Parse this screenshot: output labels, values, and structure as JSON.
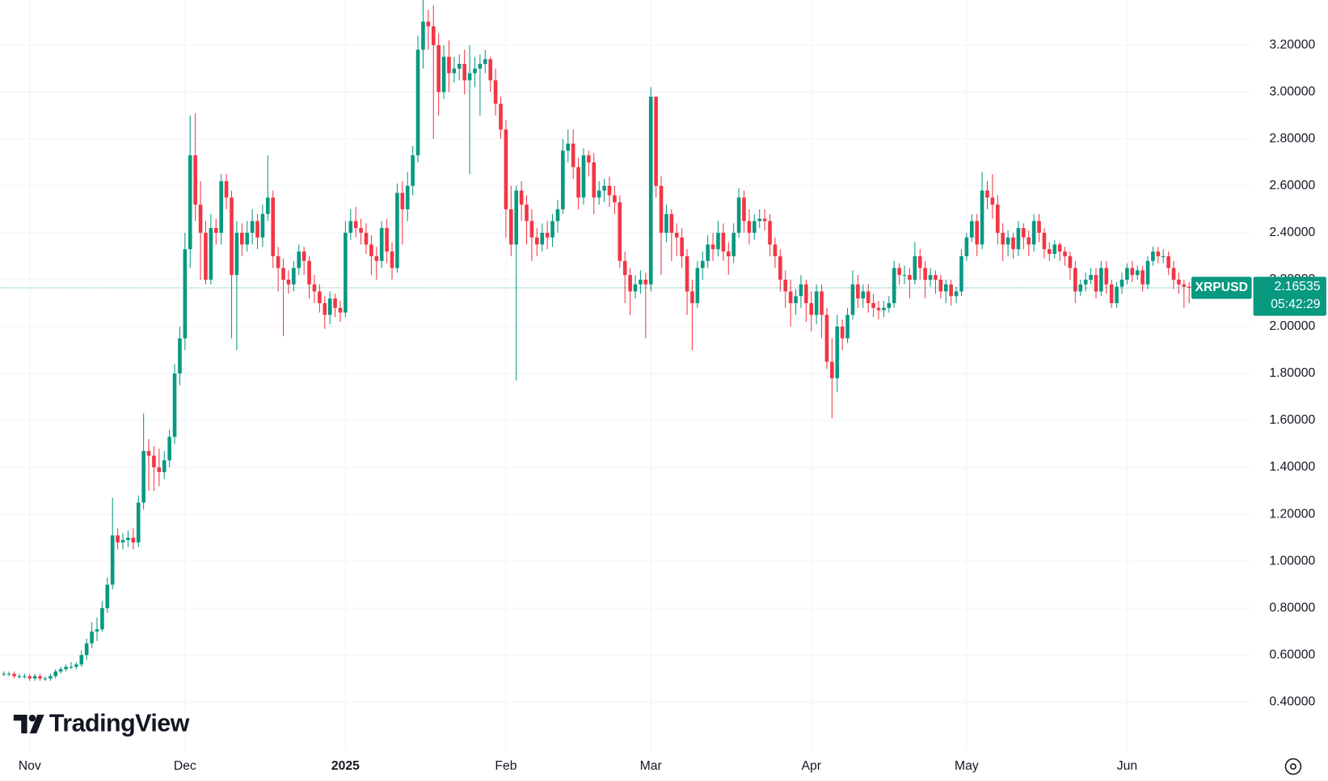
{
  "chart_data": {
    "type": "candlestick",
    "symbol": "XRPUSD",
    "last_price": 2.16535,
    "countdown": "05:42:29",
    "watermark": "TradingView",
    "up_color": "#089981",
    "down_color": "#f23645",
    "grid": true,
    "ylim": [
      0.19,
      3.392
    ],
    "yticks": [
      {
        "value": 0.4,
        "label": "0.40000"
      },
      {
        "value": 0.6,
        "label": "0.60000"
      },
      {
        "value": 0.8,
        "label": "0.80000"
      },
      {
        "value": 1.0,
        "label": "1.00000"
      },
      {
        "value": 1.2,
        "label": "1.20000"
      },
      {
        "value": 1.4,
        "label": "1.40000"
      },
      {
        "value": 1.6,
        "label": "1.60000"
      },
      {
        "value": 1.8,
        "label": "1.80000"
      },
      {
        "value": 2.0,
        "label": "2.00000"
      },
      {
        "value": 2.2,
        "label": "2.20000"
      },
      {
        "value": 2.4,
        "label": "2.40000"
      },
      {
        "value": 2.6,
        "label": "2.60000"
      },
      {
        "value": 2.8,
        "label": "2.80000"
      },
      {
        "value": 3.0,
        "label": "3.00000"
      },
      {
        "value": 3.2,
        "label": "3.20000"
      }
    ],
    "categories": [
      null,
      null,
      null,
      null,
      null,
      "Nov",
      null,
      null,
      null,
      null,
      null,
      null,
      null,
      null,
      null,
      null,
      null,
      null,
      null,
      null,
      null,
      null,
      null,
      null,
      null,
      null,
      null,
      null,
      null,
      null,
      null,
      null,
      null,
      null,
      null,
      "Dec",
      null,
      null,
      null,
      null,
      null,
      null,
      null,
      null,
      null,
      null,
      null,
      null,
      null,
      null,
      null,
      null,
      null,
      null,
      null,
      null,
      null,
      null,
      null,
      null,
      null,
      null,
      null,
      null,
      null,
      null,
      "2025",
      null,
      null,
      null,
      null,
      null,
      null,
      null,
      null,
      null,
      null,
      null,
      null,
      null,
      null,
      null,
      null,
      null,
      null,
      null,
      null,
      null,
      null,
      null,
      null,
      null,
      null,
      null,
      null,
      null,
      null,
      "Feb",
      null,
      null,
      null,
      null,
      null,
      null,
      null,
      null,
      null,
      null,
      null,
      null,
      null,
      null,
      null,
      null,
      null,
      null,
      null,
      null,
      null,
      null,
      null,
      null,
      null,
      null,
      null,
      "Mar",
      null,
      null,
      null,
      null,
      null,
      null,
      null,
      null,
      null,
      null,
      null,
      null,
      null,
      null,
      null,
      null,
      null,
      null,
      null,
      null,
      null,
      null,
      null,
      null,
      null,
      null,
      null,
      null,
      null,
      null,
      "Apr",
      null,
      null,
      null,
      null,
      null,
      null,
      null,
      null,
      null,
      null,
      null,
      null,
      null,
      null,
      null,
      null,
      null,
      null,
      null,
      null,
      null,
      null,
      null,
      null,
      null,
      null,
      null,
      null,
      null,
      "May",
      null,
      null,
      null,
      null,
      null,
      null,
      null,
      null,
      null,
      null,
      null,
      null,
      null,
      null,
      null,
      null,
      null,
      null,
      null,
      null,
      null,
      null,
      null,
      null,
      null,
      null,
      null,
      null,
      null,
      null,
      "Jun",
      null,
      null,
      null,
      null,
      null,
      null,
      null,
      null,
      null,
      null,
      null,
      null
    ],
    "open": [
      0.52,
      0.52,
      0.52,
      0.51,
      0.51,
      0.51,
      0.5,
      0.51,
      0.5,
      0.5,
      0.51,
      0.53,
      0.54,
      0.55,
      0.55,
      0.56,
      0.6,
      0.65,
      0.7,
      0.71,
      0.8,
      0.9,
      1.11,
      1.08,
      1.09,
      1.1,
      1.08,
      1.25,
      1.47,
      1.45,
      1.4,
      1.38,
      1.43,
      1.53,
      1.8,
      1.95,
      2.33,
      2.73,
      2.52,
      2.4,
      2.2,
      2.42,
      2.4,
      2.62,
      2.55,
      2.22,
      2.4,
      2.35,
      2.4,
      2.45,
      2.38,
      2.48,
      2.55,
      2.3,
      2.25,
      2.2,
      2.18,
      2.25,
      2.32,
      2.28,
      2.18,
      2.15,
      2.1,
      2.05,
      2.12,
      2.08,
      2.06,
      2.4,
      2.45,
      2.42,
      2.4,
      2.35,
      2.3,
      2.28,
      2.42,
      2.32,
      2.25,
      2.57,
      2.5,
      2.6,
      2.73,
      3.18,
      3.3,
      3.28,
      3.2,
      3.0,
      3.15,
      3.08,
      3.1,
      3.12,
      3.05,
      3.08,
      3.1,
      3.12,
      3.14,
      3.05,
      2.95,
      2.84,
      2.5,
      2.35,
      2.58,
      2.52,
      2.45,
      2.38,
      2.35,
      2.4,
      2.38,
      2.45,
      2.5,
      2.75,
      2.78,
      2.68,
      2.55,
      2.73,
      2.7,
      2.55,
      2.58,
      2.6,
      2.56,
      2.53,
      2.28,
      2.22,
      2.15,
      2.18,
      2.2,
      2.18,
      2.98,
      2.6,
      2.4,
      2.48,
      2.4,
      2.38,
      2.3,
      2.15,
      2.1,
      2.25,
      2.28,
      2.35,
      2.33,
      2.4,
      2.32,
      2.3,
      2.4,
      2.55,
      2.45,
      2.4,
      2.45,
      2.46,
      2.45,
      2.35,
      2.3,
      2.2,
      2.15,
      2.1,
      2.13,
      2.18,
      2.1,
      2.05,
      2.15,
      2.05,
      1.85,
      1.78,
      2.0,
      1.95,
      2.05,
      2.18,
      2.12,
      2.15,
      2.1,
      2.08,
      2.07,
      2.08,
      2.1,
      2.25,
      2.22,
      2.22,
      2.2,
      2.3,
      2.25,
      2.2,
      2.22,
      2.2,
      2.15,
      2.18,
      2.13,
      2.15,
      2.3,
      2.38,
      2.45,
      2.35,
      2.58,
      2.55,
      2.52,
      2.4,
      2.35,
      2.38,
      2.33,
      2.42,
      2.38,
      2.35,
      2.45,
      2.4,
      2.33,
      2.31,
      2.35,
      2.32,
      2.3,
      2.25,
      2.15,
      2.18,
      2.2,
      2.22,
      2.15,
      2.25,
      2.18,
      2.1,
      2.17,
      2.2,
      2.25,
      2.22,
      2.24,
      2.18,
      2.28,
      2.32,
      2.3,
      2.3,
      2.25,
      2.2,
      2.18,
      2.17
    ],
    "high": [
      0.53,
      0.53,
      0.53,
      0.52,
      0.52,
      0.52,
      0.52,
      0.52,
      0.51,
      0.52,
      0.54,
      0.55,
      0.56,
      0.57,
      0.57,
      0.62,
      0.67,
      0.74,
      0.76,
      0.83,
      0.93,
      1.27,
      1.14,
      1.12,
      1.13,
      1.14,
      1.28,
      1.63,
      1.52,
      1.49,
      1.48,
      1.47,
      1.56,
      1.84,
      2.0,
      2.4,
      2.9,
      2.91,
      2.62,
      2.45,
      2.48,
      2.46,
      2.65,
      2.65,
      2.58,
      2.45,
      2.44,
      2.45,
      2.5,
      2.48,
      2.52,
      2.73,
      2.58,
      2.34,
      2.29,
      2.24,
      2.28,
      2.35,
      2.34,
      2.3,
      2.22,
      2.18,
      2.13,
      2.15,
      2.14,
      2.11,
      2.45,
      2.5,
      2.51,
      2.46,
      2.44,
      2.39,
      2.34,
      2.45,
      2.46,
      2.36,
      2.61,
      2.62,
      2.66,
      2.77,
      3.24,
      3.4,
      3.35,
      3.37,
      3.25,
      3.2,
      3.22,
      3.15,
      3.16,
      3.18,
      3.2,
      3.15,
      3.16,
      3.18,
      3.15,
      3.1,
      2.98,
      2.88,
      2.6,
      2.6,
      2.62,
      2.56,
      2.5,
      2.42,
      2.44,
      2.45,
      2.48,
      2.54,
      2.8,
      2.84,
      2.84,
      2.72,
      2.76,
      2.75,
      2.74,
      2.62,
      2.63,
      2.64,
      2.6,
      2.56,
      2.32,
      2.25,
      2.22,
      2.24,
      2.23,
      3.02,
      2.98,
      2.64,
      2.52,
      2.5,
      2.44,
      2.42,
      2.33,
      2.2,
      2.28,
      2.32,
      2.39,
      2.4,
      2.45,
      2.44,
      2.36,
      2.44,
      2.59,
      2.58,
      2.5,
      2.48,
      2.5,
      2.5,
      2.48,
      2.38,
      2.33,
      2.24,
      2.2,
      2.16,
      2.22,
      2.2,
      2.15,
      2.18,
      2.18,
      2.08,
      1.95,
      2.05,
      2.03,
      2.08,
      2.24,
      2.22,
      2.18,
      2.18,
      2.14,
      2.11,
      2.11,
      2.13,
      2.28,
      2.27,
      2.26,
      2.25,
      2.36,
      2.33,
      2.28,
      2.25,
      2.24,
      2.22,
      2.2,
      2.2,
      2.17,
      2.33,
      2.4,
      2.48,
      2.48,
      2.66,
      2.62,
      2.65,
      2.56,
      2.44,
      2.41,
      2.4,
      2.45,
      2.44,
      2.41,
      2.48,
      2.48,
      2.42,
      2.36,
      2.37,
      2.36,
      2.34,
      2.32,
      2.28,
      2.2,
      2.23,
      2.25,
      2.25,
      2.28,
      2.28,
      2.2,
      2.19,
      2.23,
      2.27,
      2.28,
      2.26,
      2.26,
      2.3,
      2.34,
      2.34,
      2.33,
      2.32,
      2.28,
      2.23,
      2.2,
      2.19
    ],
    "low": [
      0.51,
      0.51,
      0.5,
      0.5,
      0.5,
      0.49,
      0.49,
      0.49,
      0.49,
      0.49,
      0.5,
      0.52,
      0.53,
      0.54,
      0.54,
      0.55,
      0.58,
      0.63,
      0.66,
      0.7,
      0.78,
      0.88,
      1.05,
      1.05,
      1.06,
      1.05,
      1.06,
      1.22,
      1.3,
      1.3,
      1.32,
      1.35,
      1.4,
      1.5,
      1.75,
      1.9,
      2.25,
      2.45,
      2.2,
      2.18,
      2.18,
      2.35,
      2.35,
      2.5,
      1.95,
      1.9,
      2.3,
      2.32,
      2.35,
      2.33,
      2.34,
      2.45,
      2.25,
      2.15,
      1.96,
      2.14,
      2.15,
      2.22,
      2.22,
      2.12,
      2.1,
      2.06,
      1.99,
      2.01,
      2.04,
      2.02,
      2.04,
      2.37,
      2.38,
      2.35,
      2.31,
      2.22,
      2.2,
      2.25,
      2.27,
      2.2,
      2.23,
      2.35,
      2.45,
      2.56,
      2.7,
      3.1,
      3.18,
      2.8,
      2.9,
      2.97,
      3.0,
      3.04,
      3.05,
      2.99,
      2.65,
      3.02,
      2.9,
      3.08,
      3.0,
      2.9,
      2.8,
      2.38,
      2.3,
      1.77,
      2.45,
      2.35,
      2.28,
      2.3,
      2.32,
      2.33,
      2.34,
      2.4,
      2.48,
      2.7,
      2.63,
      2.5,
      2.52,
      2.64,
      2.48,
      2.52,
      2.53,
      2.51,
      2.48,
      2.25,
      2.1,
      2.05,
      2.12,
      2.14,
      1.95,
      2.15,
      2.55,
      2.22,
      2.36,
      2.28,
      2.3,
      2.25,
      2.05,
      1.9,
      2.08,
      2.2,
      2.25,
      2.28,
      2.3,
      2.28,
      2.22,
      2.27,
      2.38,
      2.4,
      2.35,
      2.37,
      2.42,
      2.41,
      2.3,
      2.25,
      2.15,
      2.08,
      2.0,
      2.05,
      2.08,
      2.02,
      1.98,
      2.01,
      1.95,
      1.82,
      1.61,
      1.72,
      1.9,
      1.93,
      2.03,
      2.08,
      2.08,
      2.06,
      2.04,
      2.03,
      2.04,
      2.06,
      2.08,
      2.18,
      2.18,
      2.12,
      2.18,
      2.2,
      2.12,
      2.17,
      2.14,
      2.12,
      2.1,
      2.09,
      2.1,
      2.13,
      2.28,
      2.36,
      2.3,
      2.33,
      2.5,
      2.46,
      2.35,
      2.28,
      2.3,
      2.29,
      2.3,
      2.33,
      2.3,
      2.32,
      2.36,
      2.29,
      2.28,
      2.29,
      2.28,
      2.26,
      2.2,
      2.1,
      2.13,
      2.15,
      2.18,
      2.12,
      2.13,
      2.14,
      2.08,
      2.08,
      2.14,
      2.18,
      2.19,
      2.2,
      2.15,
      2.16,
      2.26,
      2.27,
      2.27,
      2.22,
      2.16,
      2.14,
      2.08,
      2.1
    ],
    "close": [
      0.52,
      0.52,
      0.51,
      0.51,
      0.51,
      0.5,
      0.51,
      0.5,
      0.5,
      0.51,
      0.53,
      0.54,
      0.55,
      0.55,
      0.56,
      0.6,
      0.65,
      0.7,
      0.71,
      0.8,
      0.9,
      1.11,
      1.08,
      1.09,
      1.1,
      1.08,
      1.25,
      1.47,
      1.45,
      1.4,
      1.38,
      1.43,
      1.53,
      1.8,
      1.95,
      2.33,
      2.73,
      2.52,
      2.4,
      2.2,
      2.42,
      2.4,
      2.62,
      2.55,
      2.22,
      2.4,
      2.35,
      2.4,
      2.45,
      2.38,
      2.48,
      2.55,
      2.3,
      2.25,
      2.2,
      2.18,
      2.25,
      2.32,
      2.28,
      2.18,
      2.15,
      2.1,
      2.05,
      2.12,
      2.08,
      2.06,
      2.4,
      2.45,
      2.42,
      2.4,
      2.35,
      2.3,
      2.28,
      2.42,
      2.32,
      2.25,
      2.57,
      2.5,
      2.6,
      2.73,
      3.18,
      3.3,
      3.28,
      3.2,
      3.0,
      3.15,
      3.08,
      3.1,
      3.12,
      3.05,
      3.08,
      3.1,
      3.12,
      3.14,
      3.05,
      2.95,
      2.84,
      2.5,
      2.35,
      2.58,
      2.52,
      2.45,
      2.38,
      2.35,
      2.4,
      2.38,
      2.45,
      2.5,
      2.75,
      2.78,
      2.68,
      2.55,
      2.73,
      2.7,
      2.55,
      2.58,
      2.6,
      2.56,
      2.53,
      2.28,
      2.22,
      2.15,
      2.18,
      2.2,
      2.18,
      2.98,
      2.6,
      2.4,
      2.48,
      2.4,
      2.38,
      2.3,
      2.15,
      2.1,
      2.25,
      2.28,
      2.35,
      2.33,
      2.4,
      2.32,
      2.3,
      2.4,
      2.55,
      2.45,
      2.4,
      2.45,
      2.46,
      2.45,
      2.35,
      2.3,
      2.2,
      2.15,
      2.1,
      2.13,
      2.18,
      2.1,
      2.05,
      2.15,
      2.05,
      1.85,
      1.78,
      2.0,
      1.95,
      2.05,
      2.18,
      2.12,
      2.15,
      2.1,
      2.08,
      2.07,
      2.08,
      2.1,
      2.25,
      2.22,
      2.22,
      2.2,
      2.3,
      2.25,
      2.2,
      2.22,
      2.2,
      2.15,
      2.18,
      2.13,
      2.15,
      2.3,
      2.38,
      2.45,
      2.35,
      2.58,
      2.55,
      2.52,
      2.4,
      2.35,
      2.38,
      2.33,
      2.42,
      2.38,
      2.35,
      2.45,
      2.4,
      2.33,
      2.31,
      2.35,
      2.32,
      2.3,
      2.25,
      2.15,
      2.18,
      2.2,
      2.22,
      2.15,
      2.25,
      2.18,
      2.1,
      2.17,
      2.2,
      2.25,
      2.22,
      2.24,
      2.18,
      2.28,
      2.32,
      2.3,
      2.3,
      2.25,
      2.2,
      2.18,
      2.17,
      2.16535
    ]
  }
}
